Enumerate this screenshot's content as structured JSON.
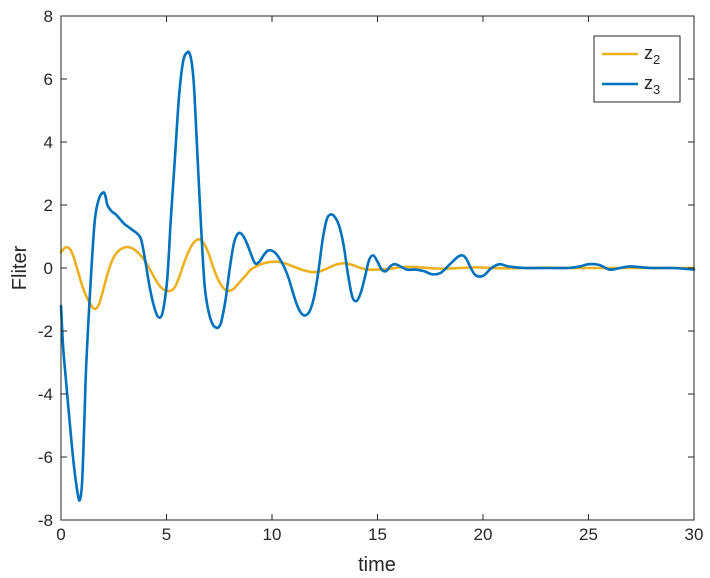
{
  "chart_data": {
    "type": "line",
    "xlabel": "time",
    "ylabel": "Fliter",
    "xlim": [
      0,
      30
    ],
    "ylim": [
      -8,
      8
    ],
    "xticks": [
      0,
      5,
      10,
      15,
      20,
      25,
      30
    ],
    "yticks": [
      -8,
      -6,
      -4,
      -2,
      0,
      2,
      4,
      6,
      8
    ],
    "grid": false,
    "legend_position": "top-right",
    "series": [
      {
        "name": "z",
        "name_subscript": "2",
        "color": "#EDB120",
        "x": [
          0,
          0.2,
          0.4,
          0.6,
          0.8,
          1.0,
          1.2,
          1.4,
          1.6,
          1.8,
          2.0,
          2.2,
          2.4,
          2.6,
          2.8,
          3.0,
          3.2,
          3.4,
          3.6,
          3.8,
          4.0,
          4.3,
          4.6,
          4.9,
          5.2,
          5.4,
          5.6,
          5.8,
          6.0,
          6.2,
          6.4,
          6.6,
          6.8,
          7.0,
          7.2,
          7.4,
          7.6,
          7.8,
          8.0,
          8.2,
          8.4,
          8.6,
          8.8,
          9.0,
          9.4,
          9.8,
          10.2,
          10.6,
          11.0,
          11.4,
          11.8,
          12.2,
          12.6,
          13.0,
          13.4,
          13.8,
          14.2,
          14.6,
          15.0,
          15.6,
          16.2,
          16.8,
          17.4,
          18.0,
          18.6,
          19.2,
          19.8,
          20.4,
          21.0,
          22,
          23,
          24,
          25,
          26,
          27,
          28,
          29,
          30
        ],
        "y": [
          0.5,
          0.65,
          0.62,
          0.35,
          -0.1,
          -0.55,
          -0.9,
          -1.15,
          -1.3,
          -1.15,
          -0.7,
          -0.2,
          0.2,
          0.45,
          0.58,
          0.65,
          0.66,
          0.62,
          0.52,
          0.38,
          0.2,
          -0.15,
          -0.5,
          -0.7,
          -0.72,
          -0.6,
          -0.3,
          0.1,
          0.45,
          0.72,
          0.88,
          0.9,
          0.75,
          0.45,
          0.05,
          -0.3,
          -0.55,
          -0.7,
          -0.72,
          -0.65,
          -0.5,
          -0.35,
          -0.2,
          -0.05,
          0.1,
          0.18,
          0.2,
          0.15,
          0.05,
          -0.05,
          -0.12,
          -0.12,
          -0.02,
          0.1,
          0.15,
          0.1,
          0.0,
          -0.05,
          -0.05,
          -0.02,
          0.03,
          0.03,
          0.0,
          -0.02,
          -0.01,
          0.01,
          0.02,
          0.0,
          -0.01,
          0.0,
          0.01,
          0.0,
          0.0,
          0.0,
          0.0,
          0.0,
          0.0,
          0.0
        ]
      },
      {
        "name": "z",
        "name_subscript": "3",
        "color": "#0072BD",
        "x": [
          0,
          0.1,
          0.2,
          0.4,
          0.6,
          0.8,
          0.9,
          1.0,
          1.1,
          1.2,
          1.4,
          1.6,
          1.8,
          2.0,
          2.1,
          2.2,
          2.4,
          2.6,
          2.8,
          3.0,
          3.2,
          3.4,
          3.6,
          3.8,
          4.0,
          4.2,
          4.4,
          4.6,
          4.8,
          5.0,
          5.1,
          5.2,
          5.4,
          5.6,
          5.8,
          6.0,
          6.1,
          6.2,
          6.3,
          6.4,
          6.6,
          6.8,
          7.0,
          7.2,
          7.4,
          7.5,
          7.6,
          7.8,
          8.0,
          8.2,
          8.4,
          8.6,
          8.8,
          9.0,
          9.2,
          9.4,
          9.6,
          9.8,
          10.0,
          10.2,
          10.4,
          10.6,
          10.8,
          11.0,
          11.2,
          11.4,
          11.6,
          11.8,
          12.0,
          12.2,
          12.4,
          12.6,
          12.8,
          13.0,
          13.2,
          13.4,
          13.6,
          13.8,
          14.0,
          14.2,
          14.4,
          14.6,
          14.8,
          15.0,
          15.2,
          15.4,
          15.6,
          15.8,
          16.0,
          16.4,
          16.8,
          17.2,
          17.6,
          18.0,
          18.4,
          18.8,
          19.0,
          19.2,
          19.6,
          20.0,
          20.4,
          20.8,
          21.2,
          22,
          23,
          24,
          24.6,
          25.0,
          25.5,
          26,
          26.5,
          27,
          28,
          29,
          30
        ],
        "y": [
          -1.2,
          -2.5,
          -3.3,
          -4.8,
          -6.2,
          -7.2,
          -7.35,
          -6.8,
          -5.0,
          -3.0,
          -0.5,
          1.5,
          2.2,
          2.4,
          2.3,
          2.0,
          1.8,
          1.7,
          1.55,
          1.4,
          1.3,
          1.2,
          1.1,
          0.9,
          0.2,
          -0.6,
          -1.2,
          -1.55,
          -1.45,
          -0.6,
          0.3,
          1.5,
          3.5,
          5.5,
          6.6,
          6.85,
          6.8,
          6.5,
          5.8,
          4.5,
          1.8,
          -0.5,
          -1.4,
          -1.8,
          -1.9,
          -1.85,
          -1.7,
          -1.0,
          0.0,
          0.8,
          1.1,
          1.05,
          0.8,
          0.45,
          0.15,
          0.2,
          0.4,
          0.55,
          0.55,
          0.45,
          0.25,
          0.0,
          -0.35,
          -0.8,
          -1.2,
          -1.45,
          -1.5,
          -1.35,
          -0.9,
          -0.1,
          0.9,
          1.55,
          1.7,
          1.6,
          1.3,
          0.7,
          -0.2,
          -0.9,
          -1.05,
          -0.8,
          -0.3,
          0.25,
          0.4,
          0.2,
          -0.05,
          -0.1,
          0.05,
          0.12,
          0.08,
          -0.05,
          -0.05,
          -0.1,
          -0.2,
          -0.15,
          0.1,
          0.35,
          0.4,
          0.3,
          -0.2,
          -0.25,
          0.0,
          0.12,
          0.05,
          0.0,
          0.0,
          0.0,
          0.05,
          0.12,
          0.1,
          -0.05,
          0.0,
          0.05,
          0.0,
          0.0,
          -0.05
        ]
      }
    ]
  }
}
